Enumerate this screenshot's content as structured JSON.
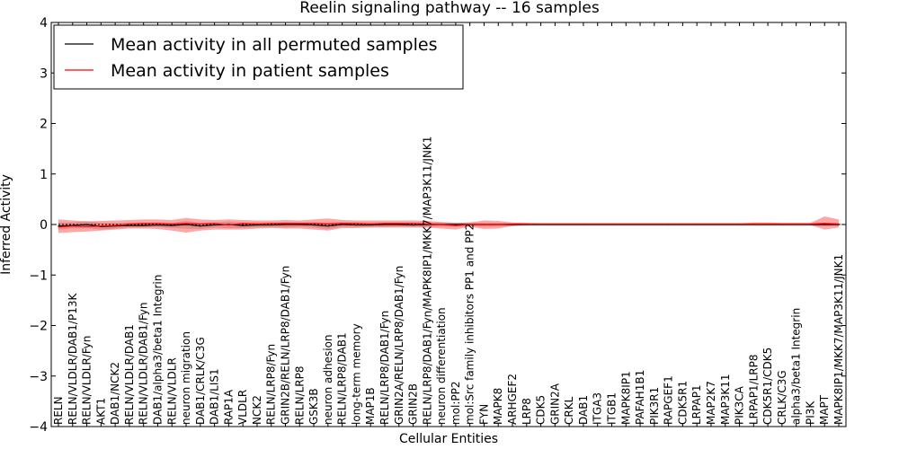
{
  "chart_data": {
    "type": "line",
    "title": "Reelin signaling pathway -- 16 samples",
    "xlabel": "Cellular Entities",
    "ylabel": "Inferred Activity",
    "ylim": [
      -4,
      4
    ],
    "yticks": [
      -4,
      -3,
      -2,
      -1,
      0,
      1,
      2,
      3,
      4
    ],
    "grid": false,
    "legend_position": "top-left",
    "categories": [
      "RELN",
      "RELN/VLDLR/DAB1/P13K",
      "RELN/VLDLR/Fyn",
      "AKT1",
      "DAB1/NCK2",
      "RELN/VLDLR/DAB1",
      "RELN/VLDLR/DAB1/Fyn",
      "DAB1/alpha3/beta1 Integrin",
      "RELN/VLDLR",
      "neuron migration",
      "DAB1/CRLK/C3G",
      "DAB1/LIS1",
      "RAP1A",
      "VLDLR",
      "NCK2",
      "RELN/LRP8/Fyn",
      "GRIN2B/RELN/LRP8/DAB1/Fyn",
      "RELN/LRP8",
      "GSK3B",
      "neuron adhesion",
      "RELN/LRP8/DAB1",
      "long-term memory",
      "MAP1B",
      "RELN/LRP8/DAB1/Fyn",
      "GRIN2A/RELN/LRP8/DAB1/Fyn",
      "GRIN2B",
      "RELN/LRP8/DAB1/Fyn/MAPK8IP1/MKK7/MAP3K11/JNK1",
      "neuron differentiation",
      "mol:PP2",
      "mol:Src family inhibitors PP1 and PP2",
      "FYN",
      "MAPK8",
      "ARHGEF2",
      "LRP8",
      "CDK5",
      "GRIN2A",
      "CRKL",
      "DAB1",
      "ITGA3",
      "ITGB1",
      "MAPK8IP1",
      "PAFAH1B1",
      "PIK3R1",
      "RAPGEF1",
      "CDK5R1",
      "LRPAP1",
      "MAP2K7",
      "MAP3K11",
      "PIK3CA",
      "LRPAP1/LRP8",
      "CDK5R1/CDK5",
      "CRLK/C3G",
      "alpha3/beta1 Integrin",
      "PI3K",
      "MAPT",
      "MAPK8IP1/MKK7/MAP3K11/JNK1"
    ],
    "series": [
      {
        "name": "Mean activity in all permuted samples",
        "color": "#000000",
        "values": [
          -0.03,
          -0.02,
          0.0,
          -0.04,
          -0.03,
          -0.02,
          -0.02,
          -0.01,
          -0.02,
          0.0,
          -0.03,
          -0.01,
          0.0,
          -0.02,
          -0.01,
          -0.01,
          0.0,
          0.0,
          -0.01,
          -0.03,
          0.0,
          -0.01,
          -0.01,
          0.0,
          0.0,
          -0.01,
          0.0,
          0.0,
          0.0,
          0.0,
          0.0,
          0.0,
          0.0,
          0.0,
          0.0,
          0.0,
          0.0,
          0.0,
          0.0,
          0.0,
          0.0,
          0.0,
          0.0,
          0.0,
          0.0,
          0.0,
          0.0,
          0.0,
          0.0,
          0.0,
          0.0,
          0.0,
          0.0,
          0.0,
          0.0,
          0.0
        ]
      },
      {
        "name": "Mean activity in patient samples",
        "color": "#ff0000",
        "values": [
          -0.05,
          -0.03,
          -0.04,
          -0.03,
          -0.02,
          0.01,
          0.02,
          0.02,
          0.01,
          0.02,
          0.01,
          0.02,
          -0.01,
          0.02,
          0.01,
          0.02,
          0.02,
          0.02,
          0.02,
          0.01,
          0.02,
          0.02,
          0.01,
          0.02,
          0.02,
          0.02,
          0.01,
          0.0,
          -0.02,
          0.0,
          0.0,
          0.0,
          0.01,
          0.01,
          0.01,
          0.01,
          0.01,
          0.01,
          0.01,
          0.01,
          0.01,
          0.01,
          0.01,
          0.01,
          0.01,
          0.01,
          0.01,
          0.01,
          0.01,
          0.01,
          0.01,
          0.01,
          0.01,
          0.01,
          0.02,
          0.01
        ]
      }
    ],
    "bands": {
      "permuted": {
        "color": "#bbbbbb",
        "lower": [
          -0.1,
          -0.08,
          -0.07,
          -0.1,
          -0.08,
          -0.06,
          -0.06,
          -0.05,
          -0.07,
          -0.08,
          -0.09,
          -0.06,
          -0.07,
          -0.07,
          -0.06,
          -0.05,
          -0.06,
          -0.05,
          -0.06,
          -0.09,
          -0.05,
          -0.05,
          -0.05,
          -0.05,
          -0.04,
          -0.05,
          -0.05,
          -0.04,
          -0.04,
          -0.04,
          -0.04,
          -0.04,
          -0.03,
          -0.03,
          -0.03,
          -0.03,
          -0.03,
          -0.03,
          -0.03,
          -0.03,
          -0.03,
          -0.03,
          -0.03,
          -0.03,
          -0.03,
          -0.03,
          -0.03,
          -0.03,
          -0.03,
          -0.03,
          -0.03,
          -0.03,
          -0.03,
          -0.03,
          -0.03,
          -0.03
        ],
        "upper": [
          0.04,
          0.04,
          0.07,
          0.03,
          0.03,
          0.03,
          0.03,
          0.03,
          0.03,
          0.07,
          0.03,
          0.04,
          0.06,
          0.03,
          0.04,
          0.03,
          0.05,
          0.04,
          0.04,
          0.04,
          0.05,
          0.04,
          0.04,
          0.04,
          0.04,
          0.04,
          0.04,
          0.04,
          0.04,
          0.04,
          0.03,
          0.03,
          0.03,
          0.03,
          0.03,
          0.03,
          0.03,
          0.03,
          0.03,
          0.03,
          0.03,
          0.03,
          0.03,
          0.03,
          0.03,
          0.03,
          0.03,
          0.03,
          0.03,
          0.03,
          0.03,
          0.03,
          0.03,
          0.03,
          0.03,
          0.03
        ]
      },
      "patient": {
        "color": "#ff0000",
        "opacity": 0.35,
        "lower": [
          -0.17,
          -0.15,
          -0.14,
          -0.12,
          -0.1,
          -0.08,
          -0.08,
          -0.09,
          -0.12,
          -0.16,
          -0.12,
          -0.1,
          -0.1,
          -0.1,
          -0.08,
          -0.07,
          -0.08,
          -0.08,
          -0.1,
          -0.12,
          -0.07,
          -0.07,
          -0.06,
          -0.06,
          -0.06,
          -0.06,
          -0.06,
          -0.08,
          -0.1,
          -0.04,
          -0.09,
          -0.08,
          -0.03,
          -0.01,
          -0.01,
          -0.01,
          -0.01,
          -0.01,
          -0.01,
          -0.01,
          -0.01,
          -0.01,
          -0.01,
          -0.01,
          -0.01,
          -0.01,
          -0.01,
          -0.01,
          -0.01,
          -0.01,
          -0.01,
          -0.01,
          -0.01,
          -0.01,
          -0.1,
          -0.06
        ],
        "upper": [
          0.1,
          0.08,
          0.06,
          0.07,
          0.08,
          0.09,
          0.1,
          0.1,
          0.09,
          0.13,
          0.1,
          0.09,
          0.1,
          0.09,
          0.08,
          0.08,
          0.09,
          0.08,
          0.1,
          0.12,
          0.09,
          0.08,
          0.08,
          0.08,
          0.08,
          0.08,
          0.07,
          0.05,
          0.03,
          0.04,
          0.08,
          0.07,
          0.04,
          0.03,
          0.02,
          0.02,
          0.02,
          0.02,
          0.02,
          0.02,
          0.02,
          0.02,
          0.02,
          0.02,
          0.02,
          0.02,
          0.02,
          0.02,
          0.02,
          0.04,
          0.04,
          0.03,
          0.03,
          0.03,
          0.16,
          0.1
        ]
      }
    }
  }
}
